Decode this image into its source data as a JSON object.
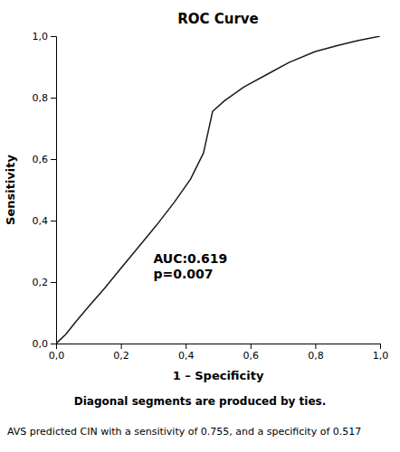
{
  "chart_data": {
    "type": "line",
    "title": "ROC Curve",
    "x_label": "1 – Specificity",
    "y_label": "Sensitivity",
    "x": [
      0.0,
      0.015,
      0.03,
      0.06,
      0.1,
      0.15,
      0.2,
      0.255,
      0.31,
      0.365,
      0.415,
      0.455,
      0.483,
      0.52,
      0.58,
      0.65,
      0.72,
      0.8,
      0.87,
      0.93,
      1.0
    ],
    "values": [
      0.0,
      0.015,
      0.03,
      0.07,
      0.12,
      0.18,
      0.245,
      0.315,
      0.385,
      0.46,
      0.535,
      0.62,
      0.755,
      0.79,
      0.835,
      0.875,
      0.915,
      0.95,
      0.97,
      0.985,
      1.0
    ],
    "color": "#1a1a1a",
    "xlim": [
      0,
      1
    ],
    "ylim": [
      0,
      1
    ],
    "xticks": [
      {
        "value": 0.0,
        "label": "0,0"
      },
      {
        "value": 0.2,
        "label": "0,2"
      },
      {
        "value": 0.4,
        "label": "0,4"
      },
      {
        "value": 0.6,
        "label": "0,6"
      },
      {
        "value": 0.8,
        "label": "0,8"
      },
      {
        "value": 1.0,
        "label": "1,0"
      }
    ],
    "yticks": [
      {
        "value": 0.0,
        "label": "0,0"
      },
      {
        "value": 0.2,
        "label": "0,2"
      },
      {
        "value": 0.4,
        "label": "0,4"
      },
      {
        "value": 0.6,
        "label": "0,6"
      },
      {
        "value": 0.8,
        "label": "0,8"
      },
      {
        "value": 1.0,
        "label": "1,0"
      }
    ],
    "annotations": [
      "AUC:0.619\np=0.007"
    ],
    "footer": [
      "Diagonal segments are produced by ties.",
      "AVS predicted CIN with a sensitivity of 0.755, and a specificity of 0.517"
    ],
    "grid": false
  }
}
